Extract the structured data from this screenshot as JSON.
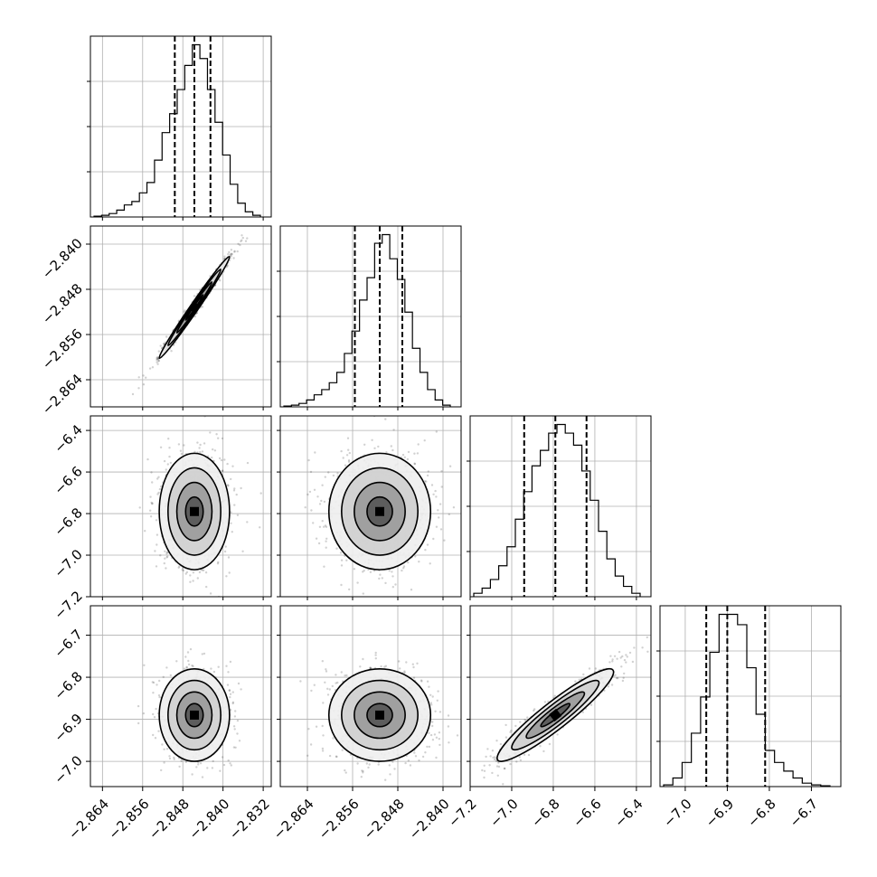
{
  "chart_data": {
    "type": "corner",
    "parameters": [
      {
        "range": [
          -2.8664,
          -2.8304
        ],
        "quantiles": [
          -2.8496,
          -2.8457,
          -2.8425
        ],
        "x_ticks": [
          "−2.864",
          "−2.856",
          "−2.848",
          "−2.840",
          "−2.832"
        ],
        "x_tick_values": [
          -2.864,
          -2.856,
          -2.848,
          -2.84,
          -2.832
        ],
        "y_ticks": [],
        "y_tick_values": [],
        "hist": [
          0.5,
          1,
          2,
          4,
          7,
          9,
          14,
          20,
          33,
          49,
          60,
          74,
          88,
          100,
          92,
          74,
          55,
          36,
          19,
          8,
          3,
          1
        ]
      },
      {
        "range": [
          -2.8688,
          -2.8368
        ],
        "quantiles": [
          -2.8556,
          -2.8512,
          -2.8472
        ],
        "x_ticks": [
          "−2.864",
          "−2.856",
          "−2.848",
          "−2.840"
        ],
        "x_tick_values": [
          -2.864,
          -2.856,
          -2.848,
          -2.84
        ],
        "y_ticks": [
          "−2.840",
          "−2.848",
          "−2.856",
          "−2.864"
        ],
        "y_tick_values": [
          -2.84,
          -2.848,
          -2.856,
          -2.864
        ],
        "hist": [
          0.5,
          1,
          2,
          4,
          7,
          10,
          14,
          20,
          31,
          44,
          62,
          75,
          95,
          100,
          86,
          74,
          55,
          34,
          20,
          10,
          4,
          1
        ]
      },
      {
        "range": [
          -7.2,
          -6.33
        ],
        "quantiles": [
          -6.94,
          -6.79,
          -6.64
        ],
        "x_ticks": [
          "−7.2",
          "−7.0",
          "−6.8",
          "−6.6",
          "−6.4"
        ],
        "x_tick_values": [
          -7.2,
          -7.0,
          -6.8,
          -6.6,
          -6.4
        ],
        "y_ticks": [
          "−6.4",
          "−6.6",
          "−6.8",
          "−7.0",
          "−7.2"
        ],
        "y_tick_values": [
          -6.4,
          -6.6,
          -6.8,
          -7.0,
          -7.2
        ],
        "hist": [
          2,
          5,
          10,
          18,
          29,
          45,
          61,
          76,
          85,
          95,
          100,
          95,
          88,
          73,
          56,
          38,
          22,
          12,
          6,
          2
        ]
      },
      {
        "range": [
          -7.06,
          -6.63
        ],
        "quantiles": [
          -6.95,
          -6.9,
          -6.81
        ],
        "x_ticks": [
          "−7.0",
          "−6.9",
          "−6.8",
          "−6.7"
        ],
        "x_tick_values": [
          -7.0,
          -6.9,
          -6.8,
          -6.7
        ],
        "y_ticks": [
          "−6.7",
          "−6.8",
          "−6.9",
          "−7.0"
        ],
        "y_tick_values": [
          -6.7,
          -6.8,
          -6.9,
          -7.0
        ],
        "hist": [
          1,
          5,
          14,
          31,
          52,
          78,
          100,
          100,
          94,
          69,
          42,
          21,
          14,
          9,
          5,
          2,
          1,
          0.5
        ]
      }
    ],
    "pairs": [
      {
        "row": 1,
        "col": 0,
        "center": [
          -2.8457,
          -2.8512
        ],
        "sigma": [
          0.0035,
          0.0045
        ],
        "rho": 0.99
      },
      {
        "row": 2,
        "col": 0,
        "center": [
          -2.8457,
          -6.79
        ],
        "sigma": [
          0.0035,
          0.14
        ],
        "rho": 0.0
      },
      {
        "row": 2,
        "col": 1,
        "center": [
          -2.8512,
          -6.79
        ],
        "sigma": [
          0.0045,
          0.14
        ],
        "rho": 0.0
      },
      {
        "row": 3,
        "col": 0,
        "center": [
          -2.8457,
          -6.89
        ],
        "sigma": [
          0.0035,
          0.055
        ],
        "rho": 0.0
      },
      {
        "row": 3,
        "col": 1,
        "center": [
          -2.8512,
          -6.89
        ],
        "sigma": [
          0.0045,
          0.055
        ],
        "rho": 0.0
      },
      {
        "row": 3,
        "col": 2,
        "center": [
          -6.79,
          -6.89
        ],
        "sigma": [
          0.14,
          0.055
        ],
        "rho": 0.93
      }
    ],
    "contour_levels": [
      0.5,
      1.0,
      1.5,
      2.0
    ],
    "grid": true,
    "quantile_line_style": "dashed",
    "legend": "none"
  }
}
